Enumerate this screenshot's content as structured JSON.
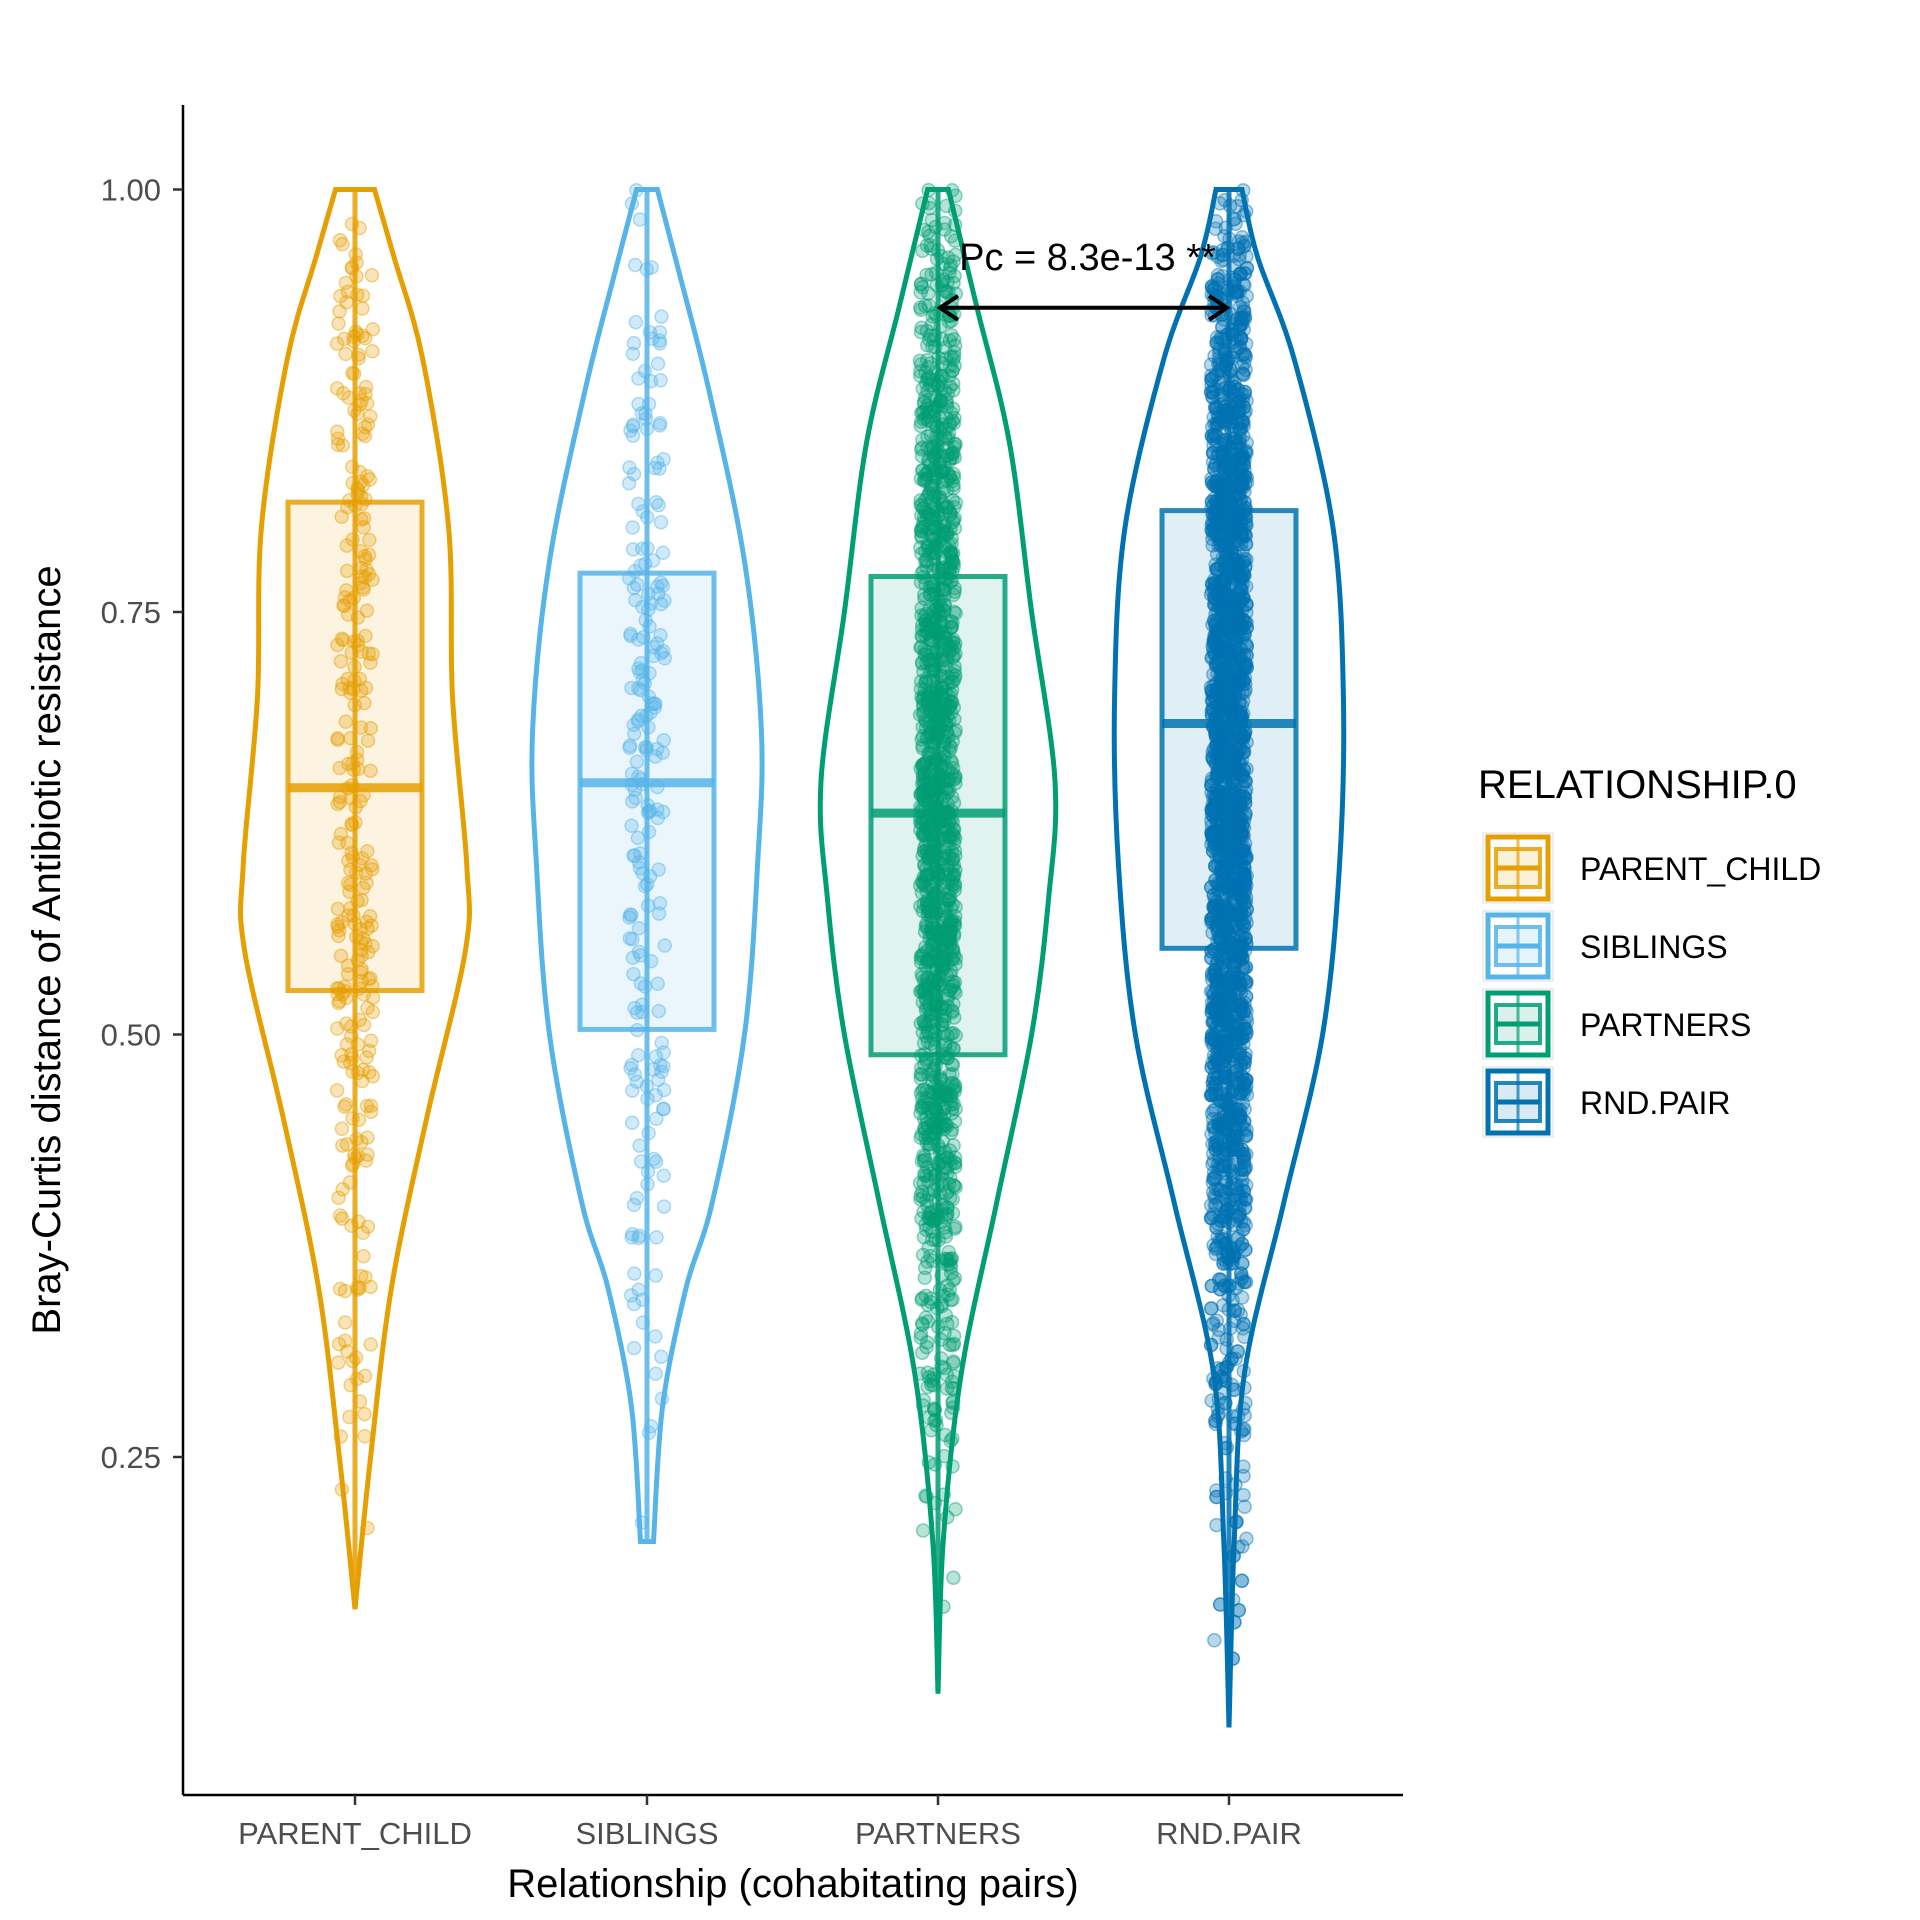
{
  "chart_data": {
    "type": "violin",
    "xlabel": "Relationship (cohabitating pairs)",
    "ylabel": "Bray-Curtis distance of Antibiotic resistance",
    "ylim": [
      0.05,
      1.05
    ],
    "yticks": [
      "0.25",
      "0.50",
      "0.75",
      "1.00"
    ],
    "categories": [
      "PARENT_CHILD",
      "SIBLINGS",
      "PARTNERS",
      "RND.PAIR"
    ],
    "colors": [
      "#E69F00",
      "#56B4E9",
      "#009E73",
      "#0072B2"
    ],
    "groups": [
      {
        "name": "PARENT_CHILD",
        "min": 0.16,
        "q1": 0.526,
        "median": 0.646,
        "q3": 0.815,
        "max": 1.0,
        "n_points": 300,
        "density": [
          [
            0.16,
            0.0
          ],
          [
            0.25,
            0.12
          ],
          [
            0.35,
            0.28
          ],
          [
            0.45,
            0.55
          ],
          [
            0.55,
            0.85
          ],
          [
            0.6,
            0.86
          ],
          [
            0.7,
            0.75
          ],
          [
            0.8,
            0.72
          ],
          [
            0.9,
            0.52
          ],
          [
            0.96,
            0.3
          ],
          [
            1.0,
            0.15
          ]
        ]
      },
      {
        "name": "SIBLINGS",
        "min": 0.2,
        "q1": 0.503,
        "median": 0.649,
        "q3": 0.773,
        "max": 1.0,
        "n_points": 220,
        "density": [
          [
            0.2,
            0.05
          ],
          [
            0.28,
            0.12
          ],
          [
            0.35,
            0.3
          ],
          [
            0.4,
            0.5
          ],
          [
            0.5,
            0.75
          ],
          [
            0.6,
            0.85
          ],
          [
            0.68,
            0.88
          ],
          [
            0.78,
            0.75
          ],
          [
            0.88,
            0.48
          ],
          [
            0.95,
            0.25
          ],
          [
            1.0,
            0.08
          ]
        ]
      },
      {
        "name": "PARTNERS",
        "min": 0.11,
        "q1": 0.488,
        "median": 0.631,
        "q3": 0.771,
        "max": 1.0,
        "n_points": 1500,
        "density": [
          [
            0.11,
            0.0
          ],
          [
            0.2,
            0.04
          ],
          [
            0.3,
            0.18
          ],
          [
            0.4,
            0.45
          ],
          [
            0.5,
            0.72
          ],
          [
            0.58,
            0.85
          ],
          [
            0.65,
            0.9
          ],
          [
            0.75,
            0.72
          ],
          [
            0.85,
            0.55
          ],
          [
            0.93,
            0.3
          ],
          [
            1.0,
            0.08
          ]
        ]
      },
      {
        "name": "RND.PAIR",
        "min": 0.09,
        "q1": 0.551,
        "median": 0.684,
        "q3": 0.81,
        "max": 1.0,
        "n_points": 2600,
        "density": [
          [
            0.09,
            0.0
          ],
          [
            0.2,
            0.04
          ],
          [
            0.3,
            0.12
          ],
          [
            0.4,
            0.42
          ],
          [
            0.5,
            0.72
          ],
          [
            0.6,
            0.85
          ],
          [
            0.7,
            0.88
          ],
          [
            0.8,
            0.8
          ],
          [
            0.9,
            0.5
          ],
          [
            0.96,
            0.22
          ],
          [
            1.0,
            0.1
          ]
        ]
      }
    ],
    "annotation": {
      "text": "Pc = 8.3e-13 **",
      "from": "PARTNERS",
      "to": "RND.PAIR",
      "y": 0.93
    },
    "legend": {
      "title": "RELATIONSHIP.0",
      "position": "right",
      "entries": [
        "PARENT_CHILD",
        "SIBLINGS",
        "PARTNERS",
        "RND.PAIR"
      ]
    }
  }
}
